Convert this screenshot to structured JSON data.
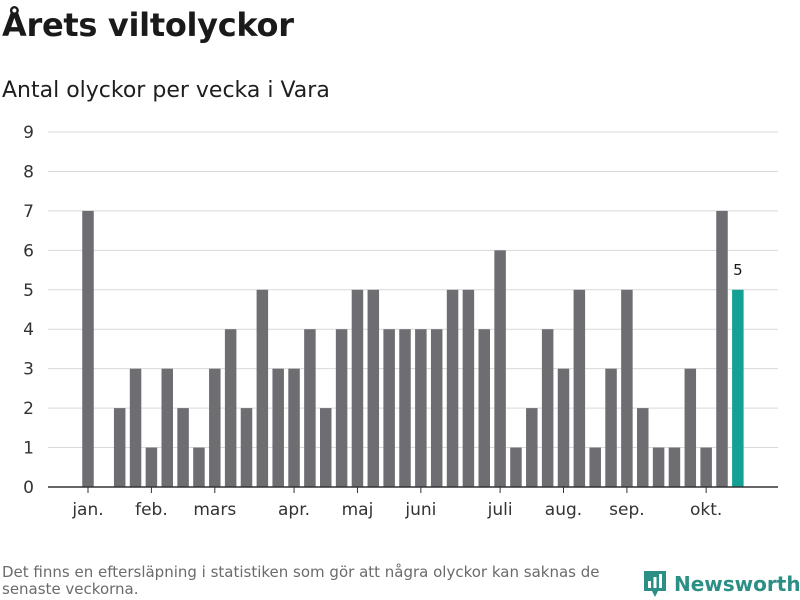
{
  "title": "Årets viltolyckor",
  "subtitle": "Antal olyckor per vecka i Vara",
  "footnote": "Det finns en eftersläpning i statistiken som gör att några olyckor kan saknas de senaste veckorna.",
  "brand": {
    "name": "Newsworthy",
    "icon": "newsworthy-logo-icon"
  },
  "colors": {
    "bar": "#6e6d72",
    "highlight": "#14a093",
    "grid": "#d9d9d9",
    "axis": "#333333",
    "brand": "#2b8f86"
  },
  "chart_data": {
    "type": "bar",
    "ylim": [
      0,
      9
    ],
    "yticks": [
      0,
      1,
      2,
      3,
      4,
      5,
      6,
      7,
      8,
      9
    ],
    "grid": true,
    "values": [
      7,
      0,
      2,
      3,
      1,
      3,
      2,
      1,
      3,
      4,
      2,
      5,
      3,
      3,
      4,
      2,
      4,
      5,
      5,
      4,
      4,
      4,
      4,
      5,
      5,
      4,
      6,
      1,
      2,
      4,
      3,
      5,
      1,
      3,
      5,
      2,
      1,
      1,
      3,
      1,
      7,
      5
    ],
    "highlight_last": true,
    "data_labels": [
      {
        "index": 41,
        "text": "5"
      }
    ],
    "month_labels": [
      {
        "label": "jan.",
        "index": 0
      },
      {
        "label": "feb.",
        "index": 4
      },
      {
        "label": "mars",
        "index": 8
      },
      {
        "label": "apr.",
        "index": 13
      },
      {
        "label": "maj",
        "index": 17
      },
      {
        "label": "juni",
        "index": 21
      },
      {
        "label": "juli",
        "index": 26
      },
      {
        "label": "aug.",
        "index": 30
      },
      {
        "label": "sep.",
        "index": 34
      },
      {
        "label": "okt.",
        "index": 39
      }
    ]
  }
}
